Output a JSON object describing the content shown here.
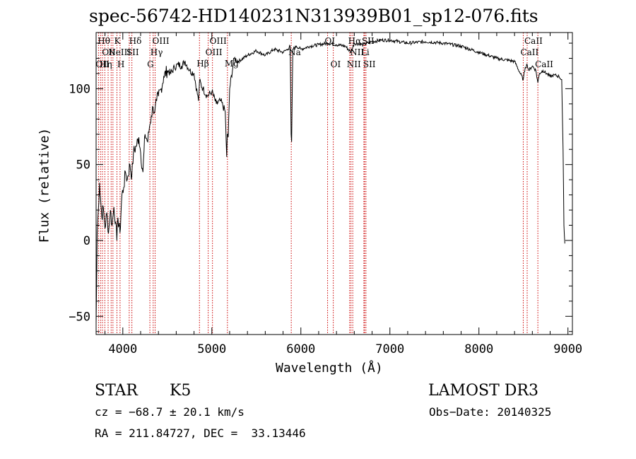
{
  "chart_data": {
    "type": "line",
    "title": "spec-56742-HD140231N313939B01_sp12-076.fits",
    "xlabel": "Wavelength (Å)",
    "ylabel": "Flux (relative)",
    "xlim": [
      3700,
      9050
    ],
    "ylim": [
      -62,
      137
    ],
    "x_ticks": [
      4000,
      5000,
      6000,
      7000,
      8000,
      9000
    ],
    "y_ticks": [
      -50,
      0,
      50,
      100
    ],
    "series": [
      {
        "name": "flux",
        "x": [
          3700,
          3712,
          3725,
          3738,
          3750,
          3765,
          3780,
          3800,
          3820,
          3840,
          3860,
          3880,
          3900,
          3920,
          3933,
          3945,
          3968,
          3990,
          4010,
          4030,
          4050,
          4080,
          4101,
          4120,
          4150,
          4180,
          4200,
          4226,
          4250,
          4280,
          4300,
          4320,
          4340,
          4360,
          4380,
          4400,
          4430,
          4460,
          4500,
          4540,
          4580,
          4620,
          4660,
          4700,
          4750,
          4800,
          4850,
          4861,
          4900,
          4950,
          5000,
          5050,
          5100,
          5150,
          5167,
          5173,
          5184,
          5200,
          5250,
          5300,
          5400,
          5500,
          5600,
          5700,
          5800,
          5850,
          5880,
          5890,
          5896,
          5910,
          5950,
          6000,
          6100,
          6200,
          6300,
          6400,
          6500,
          6563,
          6600,
          6700,
          6800,
          6900,
          7000,
          7100,
          7200,
          7400,
          7600,
          7800,
          8000,
          8200,
          8400,
          8498,
          8520,
          8542,
          8560,
          8600,
          8640,
          8662,
          8680,
          8720,
          8760,
          8800,
          8850,
          8900,
          8930,
          8945,
          8955,
          8965
        ],
        "values": [
          -55,
          5,
          20,
          38,
          28,
          15,
          22,
          8,
          18,
          5,
          20,
          10,
          22,
          12,
          0,
          15,
          5,
          30,
          35,
          45,
          40,
          50,
          42,
          58,
          62,
          68,
          58,
          45,
          70,
          65,
          75,
          82,
          88,
          85,
          92,
          95,
          100,
          108,
          112,
          110,
          114,
          116,
          115,
          118,
          112,
          110,
          92,
          105,
          100,
          95,
          98,
          90,
          92,
          85,
          55,
          70,
          68,
          100,
          120,
          118,
          122,
          125,
          122,
          126,
          124,
          126,
          128,
          70,
          65,
          126,
          128,
          126,
          128,
          129,
          130,
          129,
          128,
          124,
          130,
          129,
          131,
          132,
          132,
          131,
          130,
          131,
          130,
          128,
          124,
          120,
          118,
          106,
          114,
          116,
          112,
          115,
          112,
          104,
          110,
          112,
          110,
          108,
          109,
          108,
          106,
          60,
          10,
          -2
        ]
      }
    ],
    "line_markers": [
      {
        "x": 3727,
        "row": 2,
        "label": "OII"
      },
      {
        "x": 3750,
        "row": 0,
        "label": "Hθ"
      },
      {
        "x": 3771,
        "row": 2,
        "label": "Hη"
      },
      {
        "x": 3798,
        "row": 1,
        "label": "OII"
      },
      {
        "x": 3835,
        "row": 0,
        "label": ""
      },
      {
        "x": 3869,
        "row": 1,
        "label": "NeIII"
      },
      {
        "x": 3889,
        "row": 2,
        "label": ""
      },
      {
        "x": 3934,
        "row": 0,
        "label": "K"
      },
      {
        "x": 3969,
        "row": 2,
        "label": "H"
      },
      {
        "x": 4072,
        "row": 1,
        "label": "SII"
      },
      {
        "x": 4102,
        "row": 0,
        "label": "Hδ"
      },
      {
        "x": 4304,
        "row": 2,
        "label": "G"
      },
      {
        "x": 4341,
        "row": 1,
        "label": "Hγ"
      },
      {
        "x": 4363,
        "row": 0,
        "label": "OIII"
      },
      {
        "x": 4861,
        "row": 3,
        "label": "Hβ"
      },
      {
        "x": 4959,
        "row": 1,
        "label": "OIII"
      },
      {
        "x": 5007,
        "row": 0,
        "label": "OIII"
      },
      {
        "x": 5175,
        "row": 3,
        "label": "Mg"
      },
      {
        "x": 5892,
        "row": 1,
        "label": "Na"
      },
      {
        "x": 6300,
        "row": 0,
        "label": "OI"
      },
      {
        "x": 6364,
        "row": 2,
        "label": "OI"
      },
      {
        "x": 6548,
        "row": 2,
        "label": "NII"
      },
      {
        "x": 6563,
        "row": 0,
        "label": "Hα"
      },
      {
        "x": 6583,
        "row": 1,
        "label": "NII"
      },
      {
        "x": 6708,
        "row": 1,
        "label": "Li"
      },
      {
        "x": 6716,
        "row": 0,
        "label": "SII"
      },
      {
        "x": 6731,
        "row": 2,
        "label": "SII"
      },
      {
        "x": 8498,
        "row": 1,
        "label": "CaII"
      },
      {
        "x": 8542,
        "row": 0,
        "label": "CaII"
      },
      {
        "x": 8662,
        "row": 2,
        "label": "CaII"
      }
    ],
    "grid": false
  },
  "info": {
    "class": "STAR",
    "subclass": "K5",
    "survey": "LAMOST DR3",
    "cz": "cz = −68.7 ± 20.1 km/s",
    "obs_date": "Obs−Date: 20140325",
    "coords": "RA = 211.84727, DEC =  33.13446"
  },
  "colors": {
    "line": "#000000",
    "marker": "#cc0000",
    "axis": "#000000"
  }
}
